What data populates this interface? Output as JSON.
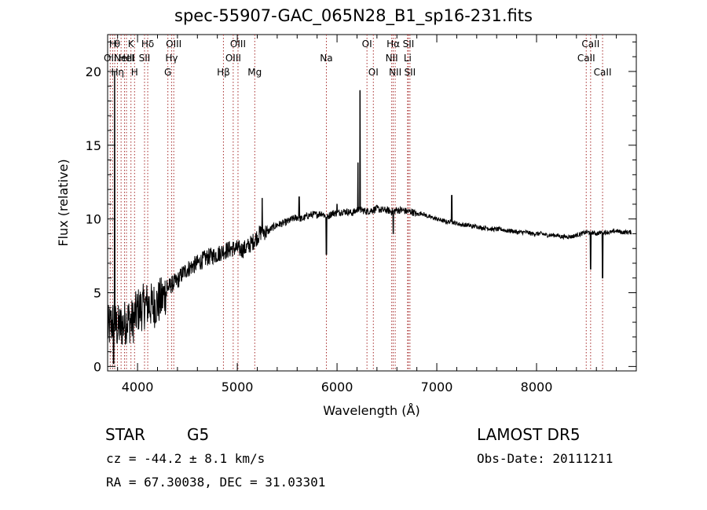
{
  "chart_data": {
    "type": "line",
    "title": "spec-55907-GAC_065N28_B1_sp16-231.fits",
    "xlabel": "Wavelength (Å)",
    "ylabel": "Flux (relative)",
    "xlim": [
      3700,
      9000
    ],
    "ylim": [
      -0.3,
      22.5
    ],
    "xticks": [
      4000,
      5000,
      6000,
      7000,
      8000
    ],
    "yticks": [
      0,
      5,
      10,
      15,
      20
    ],
    "grid": false,
    "series": [
      {
        "color": "#000000",
        "x": [
          3700,
          3750,
          3800,
          3850,
          3900,
          3950,
          4000,
          4050,
          4100,
          4150,
          4200,
          4250,
          4300,
          4350,
          4400,
          4450,
          4500,
          4550,
          4600,
          4650,
          4700,
          4750,
          4800,
          4850,
          4900,
          4950,
          5000,
          5050,
          5100,
          5150,
          5200,
          5250,
          5300,
          5350,
          5400,
          5450,
          5500,
          5550,
          5600,
          5650,
          5700,
          5750,
          5800,
          5850,
          5900,
          5950,
          6000,
          6050,
          6100,
          6150,
          6200,
          6250,
          6300,
          6350,
          6400,
          6450,
          6500,
          6550,
          6600,
          6650,
          6700,
          6750,
          6800,
          6850,
          6900,
          6950,
          7000,
          7050,
          7100,
          7150,
          7200,
          7250,
          7300,
          7350,
          7400,
          7450,
          7500,
          7550,
          7600,
          7650,
          7700,
          7750,
          7800,
          7850,
          7900,
          7950,
          8000,
          8050,
          8100,
          8150,
          8200,
          8250,
          8300,
          8350,
          8400,
          8450,
          8500,
          8550,
          8600,
          8650,
          8700,
          8750,
          8800,
          8850,
          8900
        ],
        "y": [
          2.5,
          3.0,
          2.6,
          2.8,
          3.2,
          3.0,
          3.8,
          4.0,
          4.2,
          4.1,
          4.3,
          4.6,
          5.3,
          5.6,
          5.8,
          6.3,
          6.6,
          6.8,
          7.0,
          7.2,
          7.4,
          7.5,
          7.6,
          7.8,
          7.9,
          8.0,
          8.0,
          7.9,
          8.1,
          8.4,
          8.8,
          9.2,
          9.1,
          9.4,
          9.6,
          9.7,
          9.8,
          10.0,
          10.1,
          10.0,
          10.2,
          10.3,
          10.3,
          10.4,
          10.1,
          10.4,
          10.4,
          10.5,
          10.5,
          10.4,
          10.6,
          10.6,
          10.5,
          10.6,
          10.7,
          10.6,
          10.6,
          10.5,
          10.6,
          10.6,
          10.5,
          10.5,
          10.3,
          10.4,
          10.2,
          10.1,
          10.0,
          9.9,
          9.8,
          9.8,
          9.7,
          9.6,
          9.6,
          9.5,
          9.5,
          9.4,
          9.4,
          9.3,
          9.3,
          9.3,
          9.2,
          9.2,
          9.1,
          9.1,
          9.1,
          9.0,
          9.0,
          9.0,
          8.9,
          8.9,
          8.9,
          8.8,
          8.8,
          8.8,
          8.9,
          9.0,
          9.1,
          9.1,
          9.0,
          9.1,
          9.1,
          9.1,
          9.2,
          9.1,
          9.1
        ]
      }
    ],
    "features": [
      {
        "x": 6230,
        "y": 18.7
      },
      {
        "x": 6210,
        "y": 13.8
      },
      {
        "x": 6000,
        "y": 11.0
      },
      {
        "x": 5893,
        "y": 7.6
      },
      {
        "x": 7150,
        "y": 11.6
      },
      {
        "x": 5250,
        "y": 11.4
      },
      {
        "x": 5620,
        "y": 11.5
      },
      {
        "x": 6563,
        "y": 9.0
      },
      {
        "x": 8542,
        "y": 6.6
      },
      {
        "x": 8662,
        "y": 6.0
      },
      {
        "x": 3770,
        "y": 20.0
      },
      {
        "x": 3760,
        "y": 0.2
      }
    ],
    "lines": [
      {
        "x": 3726,
        "label": "OII",
        "row": 1
      },
      {
        "x": 3750,
        "label": "H",
        "row": 0
      },
      {
        "x": 3771,
        "label": "H",
        "row": 2
      },
      {
        "x": 3798,
        "label": "θ",
        "row": 0
      },
      {
        "x": 3835,
        "label": "η",
        "row": 2
      },
      {
        "x": 3869,
        "label": "NeIII",
        "row": 1
      },
      {
        "x": 3889,
        "label": "HeI",
        "row": 1
      },
      {
        "x": 3934,
        "label": "K",
        "row": 0
      },
      {
        "x": 3970,
        "label": "H",
        "row": 2
      },
      {
        "x": 4070,
        "label": "SII",
        "row": 1
      },
      {
        "x": 4102,
        "label": "Hδ",
        "row": 0
      },
      {
        "x": 4304,
        "label": "G",
        "row": 2
      },
      {
        "x": 4341,
        "label": "Hγ",
        "row": 1
      },
      {
        "x": 4363,
        "label": "OIII",
        "row": 0
      },
      {
        "x": 4861,
        "label": "Hβ",
        "row": 2
      },
      {
        "x": 4959,
        "label": "OIII",
        "row": 1
      },
      {
        "x": 5007,
        "label": "OIII",
        "row": 0
      },
      {
        "x": 5175,
        "label": "Mg",
        "row": 2
      },
      {
        "x": 5893,
        "label": "Na",
        "row": 1
      },
      {
        "x": 6300,
        "label": "OI",
        "row": 0
      },
      {
        "x": 6364,
        "label": "OI",
        "row": 2
      },
      {
        "x": 6548,
        "label": "NII",
        "row": 1
      },
      {
        "x": 6563,
        "label": "Hα",
        "row": 0
      },
      {
        "x": 6583,
        "label": "NII",
        "row": 2
      },
      {
        "x": 6707,
        "label": "Li",
        "row": 1
      },
      {
        "x": 6716,
        "label": "SII",
        "row": 0
      },
      {
        "x": 6731,
        "label": "SII",
        "row": 2
      },
      {
        "x": 8498,
        "label": "CaII",
        "row": 1
      },
      {
        "x": 8542,
        "label": "CaII",
        "row": 0
      },
      {
        "x": 8662,
        "label": "CaII",
        "row": 2
      }
    ]
  },
  "info": {
    "class_label": "STAR",
    "subclass": "G5",
    "survey": "LAMOST DR5",
    "cz": "cz = -44.2 ± 8.1 km/s",
    "obs_date": "Obs-Date: 20111211",
    "coords": "RA =  67.30038, DEC =  31.03301"
  },
  "colors": {
    "spectrum": "#000000",
    "line_markers": "#a52a2a"
  }
}
